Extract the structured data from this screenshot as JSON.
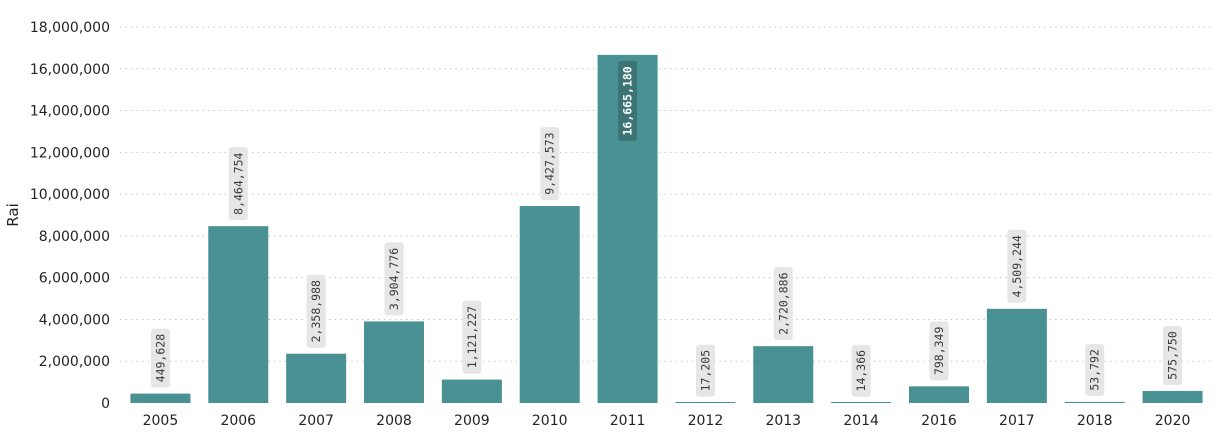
{
  "chart_data": {
    "type": "bar",
    "title": "",
    "xlabel": "",
    "ylabel": "Rai",
    "ylim": [
      0,
      18000000
    ],
    "yticks": [
      0,
      2000000,
      4000000,
      6000000,
      8000000,
      10000000,
      12000000,
      14000000,
      16000000,
      18000000
    ],
    "ytick_labels": [
      "0",
      "2,000,000",
      "4,000,000",
      "6,000,000",
      "8,000,000",
      "10,000,000",
      "12,000,000",
      "14,000,000",
      "16,000,000",
      "18,000,000"
    ],
    "grid": true,
    "categories": [
      "2005",
      "2006",
      "2007",
      "2008",
      "2009",
      "2010",
      "2011",
      "2012",
      "2013",
      "2014",
      "2016",
      "2017",
      "2018",
      "2020"
    ],
    "values": [
      449628,
      8464754,
      2358988,
      3904776,
      1121227,
      9427573,
      16665180,
      17205,
      2720886,
      14366,
      798349,
      4509244,
      53792,
      575750
    ],
    "value_labels": [
      "449,628",
      "8,464,754",
      "2,358,988",
      "3,904,776",
      "1,121,227",
      "9,427,573",
      "16,665,180",
      "17,205",
      "2,720,886",
      "14,366",
      "798,349",
      "4,509,244",
      "53,792",
      "575,750"
    ],
    "colors": {
      "bar": "#4a9193",
      "label_bg": "#e6e6e6",
      "label_text": "#3b3a39",
      "inside_label_bg": "#3c7476",
      "inside_label_text": "#ffffff",
      "grid": "#c8c6c4"
    }
  }
}
